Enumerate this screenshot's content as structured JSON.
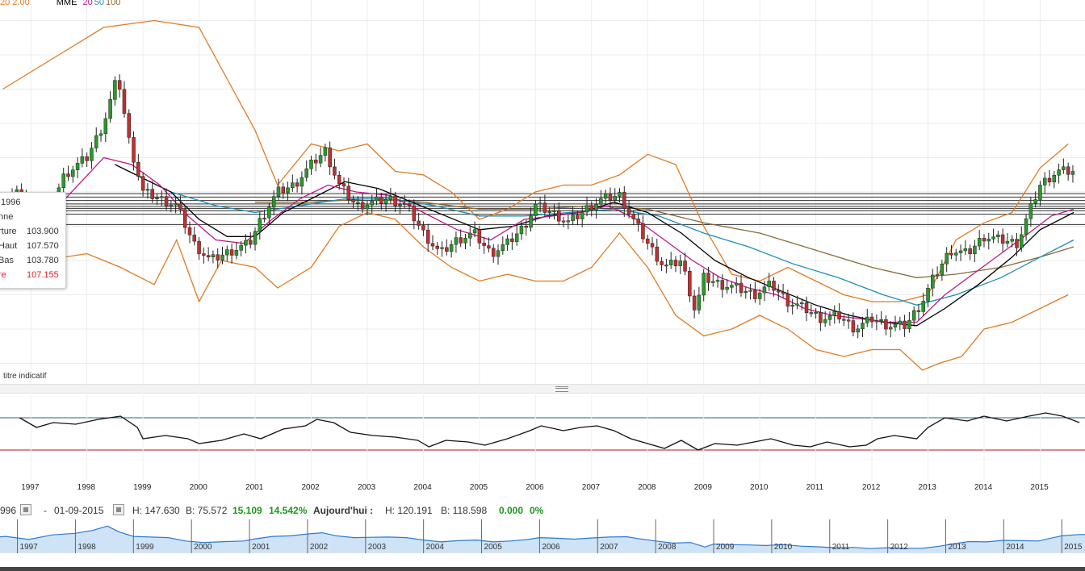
{
  "legend": {
    "bb_params": "20 2.00",
    "mme_label": "MME",
    "mme_periods": [
      "20",
      "50",
      "100"
    ]
  },
  "tooltip": {
    "date": "1996",
    "rows": [
      {
        "label": "nne",
        "value": ""
      },
      {
        "label": "rture",
        "value": "103.900"
      },
      {
        "label": "Haut",
        "value": "107.570"
      },
      {
        "label": "Bas",
        "value": "103.780"
      },
      {
        "label": "re",
        "value": "107.155"
      }
    ]
  },
  "footnote": "titre indicatif",
  "period": {
    "start": "996",
    "dash": "-",
    "end": "01-09-2015",
    "high": "H: 147.630",
    "low": "B: 75.572",
    "change": "15.109",
    "change_pct": "14.542%",
    "today_label": "Aujourd'hui :",
    "today_high": "H: 120.191",
    "today_low": "B: 118.598",
    "today_change": "0.000",
    "today_change_pct": "0%"
  },
  "colors": {
    "bollinger": "#e07a22",
    "ema20": "#c0188a",
    "ema50": "#1e8fb5",
    "ema100": "#8a6a3a",
    "sma": "#000000",
    "candle_up": "#2a9a2a",
    "candle_down": "#c03030",
    "osc_upper": "#1a6a8a",
    "osc_lower": "#b01818",
    "navigator_line": "#2a7ad0",
    "navigator_fill": "#cfe3f6"
  },
  "chart_data": {
    "type": "line",
    "x_axis_years": [
      "1997",
      "1998",
      "1999",
      "2000",
      "2001",
      "2002",
      "2003",
      "2004",
      "2005",
      "2006",
      "2007",
      "2008",
      "2009",
      "2010",
      "2011",
      "2012",
      "2013",
      "2014",
      "2015"
    ],
    "navigator_years": [
      "1997",
      "1998",
      "1999",
      "2000",
      "2001",
      "2002",
      "2003",
      "2004",
      "2005",
      "2006",
      "2007",
      "2008",
      "2009",
      "2010",
      "2011",
      "2012",
      "2013",
      "2014",
      "2015"
    ],
    "price": [
      [
        1996.5,
        106
      ],
      [
        1996.8,
        110
      ],
      [
        1997.2,
        100
      ],
      [
        1997.6,
        115
      ],
      [
        1998.0,
        120
      ],
      [
        1998.3,
        130
      ],
      [
        1998.55,
        144
      ],
      [
        1998.75,
        125
      ],
      [
        1999.0,
        110
      ],
      [
        1999.3,
        108
      ],
      [
        1999.6,
        106
      ],
      [
        1999.9,
        95
      ],
      [
        2000.2,
        90
      ],
      [
        2000.6,
        93
      ],
      [
        2000.9,
        95
      ],
      [
        2001.1,
        102
      ],
      [
        2001.4,
        110
      ],
      [
        2001.7,
        112
      ],
      [
        2002.0,
        118
      ],
      [
        2002.25,
        122
      ],
      [
        2002.5,
        112
      ],
      [
        2002.8,
        106
      ],
      [
        2003.1,
        107
      ],
      [
        2003.4,
        108
      ],
      [
        2003.7,
        106
      ],
      [
        2004.0,
        98
      ],
      [
        2004.3,
        92
      ],
      [
        2004.6,
        96
      ],
      [
        2004.9,
        98
      ],
      [
        2005.2,
        92
      ],
      [
        2005.5,
        95
      ],
      [
        2005.8,
        100
      ],
      [
        2006.0,
        106
      ],
      [
        2006.3,
        104
      ],
      [
        2006.6,
        101
      ],
      [
        2006.9,
        105
      ],
      [
        2007.2,
        108
      ],
      [
        2007.5,
        109
      ],
      [
        2007.7,
        103
      ],
      [
        2008.0,
        95
      ],
      [
        2008.3,
        88
      ],
      [
        2008.6,
        90
      ],
      [
        2008.85,
        75
      ],
      [
        2009.0,
        85
      ],
      [
        2009.3,
        83
      ],
      [
        2009.6,
        82
      ],
      [
        2009.9,
        80
      ],
      [
        2010.2,
        83
      ],
      [
        2010.5,
        78
      ],
      [
        2010.8,
        76
      ],
      [
        2011.1,
        73
      ],
      [
        2011.4,
        74
      ],
      [
        2011.7,
        70
      ],
      [
        2012.0,
        73
      ],
      [
        2012.3,
        71
      ],
      [
        2012.6,
        71
      ],
      [
        2012.9,
        78
      ],
      [
        2013.1,
        85
      ],
      [
        2013.4,
        93
      ],
      [
        2013.7,
        92
      ],
      [
        2014.0,
        97
      ],
      [
        2014.3,
        96
      ],
      [
        2014.6,
        95
      ],
      [
        2014.8,
        104
      ],
      [
        2015.0,
        112
      ],
      [
        2015.3,
        116
      ],
      [
        2015.6,
        116
      ]
    ],
    "bollinger_upper": [
      [
        1996.5,
        140
      ],
      [
        1997.5,
        150
      ],
      [
        1998.3,
        158
      ],
      [
        1999.2,
        160
      ],
      [
        2000.0,
        158
      ],
      [
        2000.6,
        140
      ],
      [
        2001.0,
        128
      ],
      [
        2001.4,
        112
      ],
      [
        2002.0,
        124
      ],
      [
        2002.5,
        122
      ],
      [
        2003.0,
        124
      ],
      [
        2003.5,
        116
      ],
      [
        2004.0,
        115
      ],
      [
        2004.5,
        110
      ],
      [
        2005.0,
        102
      ],
      [
        2005.5,
        105
      ],
      [
        2006.0,
        110
      ],
      [
        2006.5,
        112
      ],
      [
        2007.0,
        112
      ],
      [
        2007.5,
        115
      ],
      [
        2008.0,
        121
      ],
      [
        2008.5,
        118
      ],
      [
        2009.0,
        100
      ],
      [
        2009.5,
        86
      ],
      [
        2010.0,
        84
      ],
      [
        2010.5,
        88
      ],
      [
        2011.0,
        84
      ],
      [
        2011.5,
        80
      ],
      [
        2012.0,
        78
      ],
      [
        2012.5,
        78
      ],
      [
        2013.0,
        80
      ],
      [
        2013.5,
        96
      ],
      [
        2014.0,
        101
      ],
      [
        2014.5,
        104
      ],
      [
        2015.0,
        117
      ],
      [
        2015.5,
        124
      ]
    ],
    "bollinger_lower": [
      [
        1996.5,
        92
      ],
      [
        1997.2,
        90
      ],
      [
        1998.0,
        92
      ],
      [
        1998.6,
        88
      ],
      [
        1999.2,
        83
      ],
      [
        1999.6,
        96
      ],
      [
        2000.0,
        78
      ],
      [
        2000.4,
        90
      ],
      [
        2001.0,
        88
      ],
      [
        2001.4,
        82
      ],
      [
        2002.0,
        88
      ],
      [
        2002.5,
        100
      ],
      [
        2003.0,
        104
      ],
      [
        2003.5,
        102
      ],
      [
        2004.0,
        94
      ],
      [
        2004.5,
        88
      ],
      [
        2005.0,
        84
      ],
      [
        2005.5,
        86
      ],
      [
        2006.0,
        84
      ],
      [
        2006.5,
        84
      ],
      [
        2007.0,
        88
      ],
      [
        2007.5,
        98
      ],
      [
        2008.0,
        88
      ],
      [
        2008.5,
        74
      ],
      [
        2009.0,
        68
      ],
      [
        2009.5,
        70
      ],
      [
        2010.0,
        74
      ],
      [
        2010.5,
        70
      ],
      [
        2011.0,
        64
      ],
      [
        2011.5,
        62
      ],
      [
        2012.0,
        64
      ],
      [
        2012.5,
        64
      ],
      [
        2012.9,
        58
      ],
      [
        2013.2,
        60
      ],
      [
        2013.6,
        62
      ],
      [
        2014.0,
        70
      ],
      [
        2014.5,
        72
      ],
      [
        2015.0,
        76
      ],
      [
        2015.5,
        80
      ]
    ],
    "ema20": [
      [
        1996.5,
        102
      ],
      [
        1997.5,
        106
      ],
      [
        1998.3,
        120
      ],
      [
        1998.8,
        118
      ],
      [
        1999.3,
        112
      ],
      [
        1999.8,
        103
      ],
      [
        2000.3,
        96
      ],
      [
        2000.8,
        95
      ],
      [
        2001.3,
        102
      ],
      [
        2001.8,
        108
      ],
      [
        2002.3,
        112
      ],
      [
        2002.8,
        110
      ],
      [
        2003.4,
        109
      ],
      [
        2004.0,
        104
      ],
      [
        2004.6,
        99
      ],
      [
        2005.2,
        96
      ],
      [
        2005.8,
        102
      ],
      [
        2006.3,
        103
      ],
      [
        2006.8,
        104
      ],
      [
        2007.3,
        106
      ],
      [
        2007.8,
        102
      ],
      [
        2008.3,
        96
      ],
      [
        2008.8,
        90
      ],
      [
        2009.3,
        85
      ],
      [
        2009.8,
        82
      ],
      [
        2010.3,
        80
      ],
      [
        2010.8,
        76
      ],
      [
        2011.3,
        74
      ],
      [
        2011.8,
        73
      ],
      [
        2012.3,
        72
      ],
      [
        2012.8,
        72
      ],
      [
        2013.3,
        80
      ],
      [
        2013.8,
        86
      ],
      [
        2014.3,
        92
      ],
      [
        2014.8,
        98
      ],
      [
        2015.2,
        103
      ],
      [
        2015.6,
        105
      ]
    ],
    "sma": [
      [
        1998.5,
        118
      ],
      [
        1999.0,
        114
      ],
      [
        1999.5,
        110
      ],
      [
        2000.0,
        102
      ],
      [
        2000.5,
        97
      ],
      [
        2001.0,
        97
      ],
      [
        2001.5,
        104
      ],
      [
        2002.0,
        108
      ],
      [
        2002.6,
        113
      ],
      [
        2003.2,
        111
      ],
      [
        2003.8,
        107
      ],
      [
        2004.4,
        103
      ],
      [
        2005.0,
        99
      ],
      [
        2005.6,
        100
      ],
      [
        2006.2,
        103
      ],
      [
        2006.8,
        104
      ],
      [
        2007.4,
        107
      ],
      [
        2008.0,
        104
      ],
      [
        2008.6,
        98
      ],
      [
        2009.2,
        90
      ],
      [
        2009.8,
        85
      ],
      [
        2010.4,
        81
      ],
      [
        2011.0,
        77
      ],
      [
        2011.6,
        74
      ],
      [
        2012.2,
        72
      ],
      [
        2012.8,
        71
      ],
      [
        2013.3,
        76
      ],
      [
        2013.9,
        83
      ],
      [
        2014.5,
        91
      ],
      [
        2015.0,
        99
      ],
      [
        2015.6,
        104
      ]
    ],
    "ema50": [
      [
        1999.5,
        110
      ],
      [
        2000.3,
        106
      ],
      [
        2001.0,
        104
      ],
      [
        2001.8,
        106
      ],
      [
        2002.6,
        108
      ],
      [
        2003.4,
        108
      ],
      [
        2004.2,
        106
      ],
      [
        2005.0,
        103
      ],
      [
        2005.8,
        103
      ],
      [
        2006.6,
        104
      ],
      [
        2007.4,
        105
      ],
      [
        2008.2,
        103
      ],
      [
        2009.0,
        98
      ],
      [
        2009.8,
        94
      ],
      [
        2010.6,
        89
      ],
      [
        2011.4,
        85
      ],
      [
        2012.2,
        80
      ],
      [
        2012.8,
        77
      ],
      [
        2013.5,
        80
      ],
      [
        2014.3,
        85
      ],
      [
        2015.0,
        91
      ],
      [
        2015.6,
        96
      ]
    ],
    "ema100": [
      [
        2001.0,
        107
      ],
      [
        2002.0,
        107
      ],
      [
        2003.0,
        108
      ],
      [
        2004.0,
        107
      ],
      [
        2005.0,
        105
      ],
      [
        2006.0,
        105
      ],
      [
        2007.0,
        106
      ],
      [
        2008.0,
        105
      ],
      [
        2009.0,
        101
      ],
      [
        2010.0,
        98
      ],
      [
        2011.0,
        93
      ],
      [
        2012.0,
        88
      ],
      [
        2012.8,
        85
      ],
      [
        2013.5,
        86
      ],
      [
        2014.3,
        88
      ],
      [
        2015.0,
        91
      ],
      [
        2015.6,
        94
      ]
    ],
    "horizontal_levels": [
      109.5,
      108.5,
      107.5,
      106.5,
      105.8,
      105.2,
      104.5,
      103.5,
      100.5
    ],
    "y_range": [
      54,
      166
    ],
    "x_range": [
      1996.45,
      2015.8
    ],
    "oscillator": {
      "upper_level": 70,
      "lower_level": 30,
      "values": [
        [
          1996.8,
          70
        ],
        [
          1997.1,
          58
        ],
        [
          1997.4,
          64
        ],
        [
          1997.8,
          62
        ],
        [
          1998.2,
          68
        ],
        [
          1998.6,
          72
        ],
        [
          1998.9,
          58
        ],
        [
          1999.0,
          44
        ],
        [
          1999.4,
          48
        ],
        [
          1999.8,
          44
        ],
        [
          2000.0,
          38
        ],
        [
          2000.4,
          42
        ],
        [
          2000.8,
          50
        ],
        [
          2001.1,
          44
        ],
        [
          2001.5,
          56
        ],
        [
          2001.9,
          60
        ],
        [
          2002.1,
          68
        ],
        [
          2002.4,
          64
        ],
        [
          2002.7,
          52
        ],
        [
          2003.1,
          48
        ],
        [
          2003.5,
          46
        ],
        [
          2003.9,
          42
        ],
        [
          2004.1,
          34
        ],
        [
          2004.4,
          42
        ],
        [
          2004.8,
          40
        ],
        [
          2005.1,
          36
        ],
        [
          2005.5,
          44
        ],
        [
          2005.9,
          54
        ],
        [
          2006.1,
          60
        ],
        [
          2006.5,
          54
        ],
        [
          2006.8,
          58
        ],
        [
          2007.1,
          60
        ],
        [
          2007.4,
          54
        ],
        [
          2007.7,
          44
        ],
        [
          2008.0,
          38
        ],
        [
          2008.3,
          32
        ],
        [
          2008.6,
          42
        ],
        [
          2008.9,
          30
        ],
        [
          2009.2,
          38
        ],
        [
          2009.6,
          36
        ],
        [
          2009.9,
          40
        ],
        [
          2010.2,
          44
        ],
        [
          2010.6,
          36
        ],
        [
          2010.9,
          34
        ],
        [
          2011.2,
          40
        ],
        [
          2011.6,
          34
        ],
        [
          2011.9,
          36
        ],
        [
          2012.1,
          44
        ],
        [
          2012.4,
          48
        ],
        [
          2012.8,
          44
        ],
        [
          2013.0,
          58
        ],
        [
          2013.3,
          70
        ],
        [
          2013.7,
          66
        ],
        [
          2014.0,
          72
        ],
        [
          2014.4,
          66
        ],
        [
          2014.8,
          72
        ],
        [
          2015.1,
          76
        ],
        [
          2015.4,
          72
        ],
        [
          2015.7,
          64
        ]
      ]
    }
  }
}
